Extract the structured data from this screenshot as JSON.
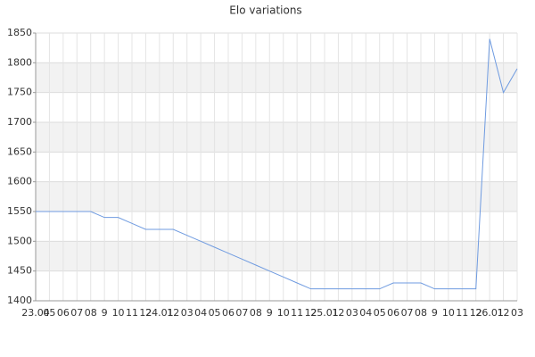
{
  "chart_data": {
    "type": "line",
    "title": "Elo variations",
    "categories": [
      "23.04",
      "05",
      "06",
      "07",
      "08",
      "9",
      "10",
      "11",
      "12",
      "24.01",
      "12",
      "03",
      "04",
      "05",
      "06",
      "07",
      "08",
      "9",
      "10",
      "11",
      "12",
      "25.01",
      "12",
      "03",
      "04",
      "05",
      "06",
      "07",
      "08",
      "9",
      "10",
      "11",
      "12",
      "26.01",
      "12",
      "03"
    ],
    "series": [
      {
        "name": "Elo",
        "color": "#6f9be0",
        "values": [
          1550,
          1550,
          1550,
          1550,
          1550,
          1540,
          1540,
          1530,
          1520,
          1520,
          1520,
          1510,
          1500,
          1490,
          1480,
          1470,
          1460,
          1450,
          1440,
          1430,
          1420,
          1420,
          1420,
          1420,
          1420,
          1420,
          1430,
          1430,
          1430,
          1420,
          1420,
          1420,
          1420,
          1840,
          1750,
          1790
        ]
      }
    ],
    "ylim": [
      1400,
      1850
    ],
    "yticks": [
      1400,
      1450,
      1500,
      1550,
      1600,
      1650,
      1700,
      1750,
      1800,
      1850
    ],
    "grid": true
  }
}
